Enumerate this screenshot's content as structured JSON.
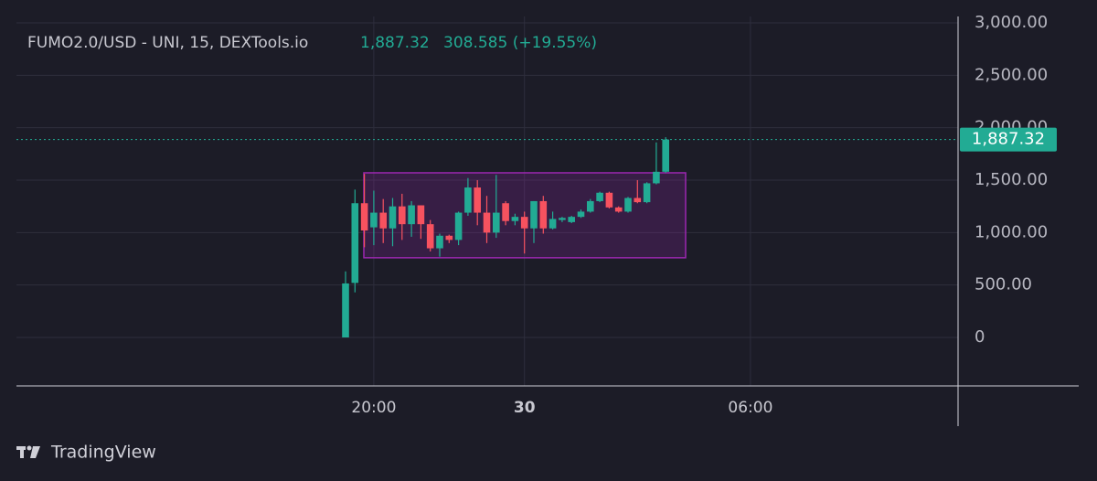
{
  "chart_data": {
    "type": "candlestick",
    "title": "FUMO2.0/USD - UNI, 15, DEXTools.io",
    "last_price": {
      "value": 1887.32,
      "label": "1,887.32"
    },
    "change_label": "308.585 (+19.55%)",
    "categories": [
      null,
      null,
      null,
      "20:00",
      null,
      null,
      null,
      null,
      null,
      null,
      null,
      null,
      null,
      null,
      null,
      null,
      null,
      null,
      null,
      "30",
      null,
      null,
      null,
      null,
      null,
      null,
      null,
      null,
      null,
      null,
      null,
      null,
      null,
      null,
      null,
      null,
      null,
      null,
      null,
      null,
      null,
      null,
      null,
      "06:00"
    ],
    "open": [
      0,
      520,
      1280,
      1050,
      1190,
      1040,
      1250,
      1080,
      1260,
      1080,
      850,
      970,
      930,
      1190,
      1430,
      1190,
      1000,
      1280,
      1110,
      1150,
      1040,
      1300,
      1040,
      1120,
      1100,
      1150,
      1200,
      1300,
      1380,
      1240,
      1200,
      1330,
      1290,
      1470,
      1580,
      null,
      null,
      null,
      null,
      null,
      null,
      null,
      null,
      null
    ],
    "high": [
      630,
      1410,
      1560,
      1400,
      1320,
      1330,
      1370,
      1300,
      1260,
      1120,
      990,
      980,
      1200,
      1520,
      1500,
      1350,
      1550,
      1300,
      1180,
      1200,
      1300,
      1350,
      1200,
      1150,
      1160,
      1220,
      1320,
      1390,
      1390,
      1250,
      1340,
      1500,
      1480,
      1860,
      1910,
      null,
      null,
      null,
      null,
      null,
      null,
      null,
      null,
      null
    ],
    "low": [
      0,
      430,
      860,
      880,
      900,
      870,
      930,
      960,
      940,
      820,
      770,
      900,
      880,
      1160,
      1070,
      900,
      950,
      1070,
      1070,
      800,
      900,
      990,
      1030,
      1100,
      1090,
      1140,
      1190,
      1290,
      1230,
      1190,
      1190,
      1280,
      1280,
      1460,
      1570,
      null,
      null,
      null,
      null,
      null,
      null,
      null,
      null,
      null
    ],
    "close": [
      515,
      1280,
      1020,
      1190,
      1040,
      1250,
      1080,
      1260,
      1080,
      850,
      970,
      930,
      1190,
      1430,
      1190,
      1000,
      1190,
      1110,
      1150,
      1040,
      1300,
      1040,
      1130,
      1140,
      1150,
      1200,
      1300,
      1380,
      1240,
      1200,
      1330,
      1290,
      1470,
      1580,
      1887.32,
      null,
      null,
      null,
      null,
      null,
      null,
      null,
      null,
      null
    ],
    "up_color": "#22ab94",
    "down_color": "#f7525f",
    "range_box": {
      "low": 760,
      "high": 1570,
      "color": "#9c27b0"
    },
    "ylim": [
      -462,
      3061
    ],
    "yticks": [
      0,
      {
        "value": 500,
        "label": "500.00"
      },
      {
        "value": 1000,
        "label": "1,000.00"
      },
      {
        "value": 1500,
        "label": "1,500.00"
      },
      {
        "value": 2000,
        "label": "2,000.00"
      },
      {
        "value": 2500,
        "label": "2,500.00"
      },
      {
        "value": 3000,
        "label": "3,000.00"
      }
    ],
    "grid": true,
    "brand": "TradingView"
  }
}
